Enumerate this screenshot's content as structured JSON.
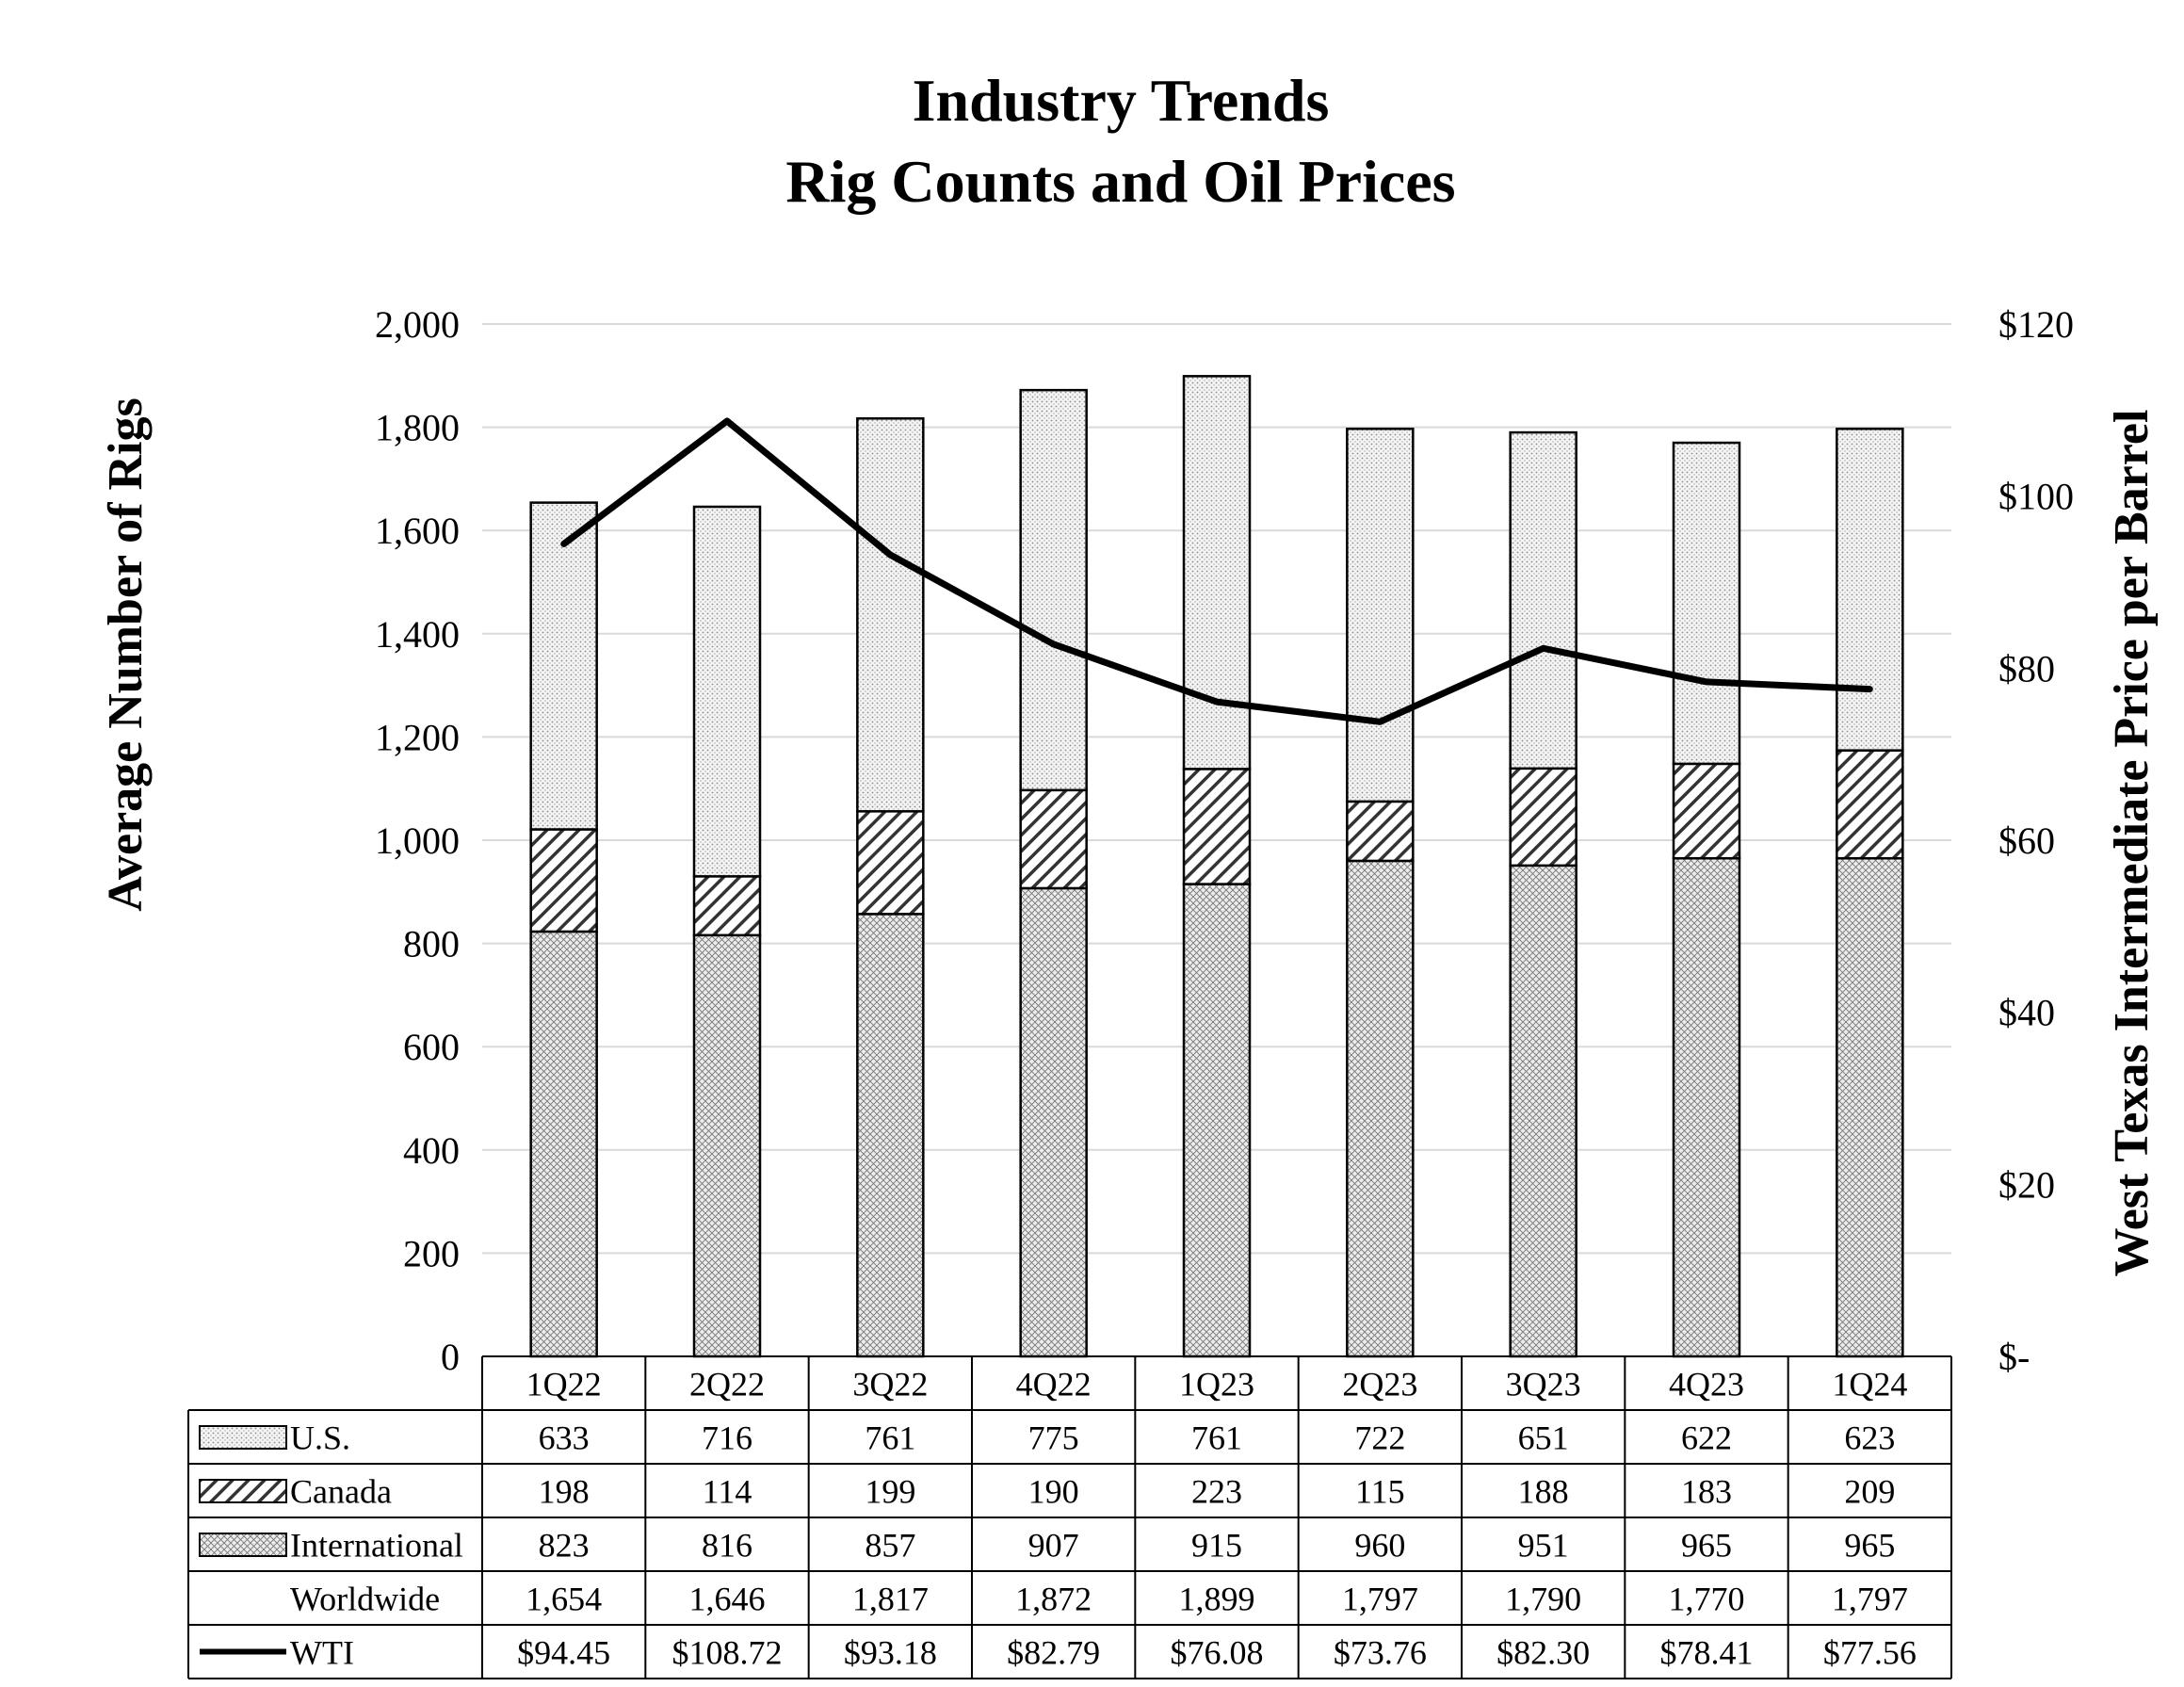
{
  "chart_data": {
    "type": "bar",
    "stacked": true,
    "title": [
      "Industry Trends",
      "Rig Counts and Oil Prices"
    ],
    "ylabel": "Average Number of Rigs",
    "y2label": "West Texas Intermediate Price per Barrel",
    "ylim": [
      0,
      2000
    ],
    "yticks": [
      "0",
      "200",
      "400",
      "600",
      "800",
      "1,000",
      "1,200",
      "1,400",
      "1,600",
      "1,800",
      "2,000"
    ],
    "y2lim": [
      0,
      120
    ],
    "y2ticks": [
      "$-",
      "$20",
      "$40",
      "$60",
      "$80",
      "$100",
      "$120"
    ],
    "grid": true,
    "categories": [
      "1Q22",
      "2Q22",
      "3Q22",
      "4Q22",
      "1Q23",
      "2Q23",
      "3Q23",
      "4Q23",
      "1Q24"
    ],
    "series": [
      {
        "name": "U.S.",
        "kind": "bar",
        "pattern": "dots",
        "values": [
          633,
          716,
          761,
          775,
          761,
          722,
          651,
          622,
          623
        ],
        "labels": [
          "633",
          "716",
          "761",
          "775",
          "761",
          "722",
          "651",
          "622",
          "623"
        ]
      },
      {
        "name": "Canada",
        "kind": "bar",
        "pattern": "diagonal",
        "values": [
          198,
          114,
          199,
          190,
          223,
          115,
          188,
          183,
          209
        ],
        "labels": [
          "198",
          "114",
          "199",
          "190",
          "223",
          "115",
          "188",
          "183",
          "209"
        ]
      },
      {
        "name": "International",
        "kind": "bar",
        "pattern": "crosshatch",
        "values": [
          823,
          816,
          857,
          907,
          915,
          960,
          951,
          965,
          965
        ],
        "labels": [
          "823",
          "816",
          "857",
          "907",
          "915",
          "960",
          "951",
          "965",
          "965"
        ]
      },
      {
        "name": "Worldwide",
        "kind": "total",
        "values": [
          1654,
          1646,
          1817,
          1872,
          1899,
          1797,
          1790,
          1770,
          1797
        ],
        "labels": [
          "1,654",
          "1,646",
          "1,817",
          "1,872",
          "1,899",
          "1,797",
          "1,790",
          "1,770",
          "1,797"
        ]
      },
      {
        "name": "WTI",
        "kind": "line",
        "axis": "y2",
        "values": [
          94.45,
          108.72,
          93.18,
          82.79,
          76.08,
          73.76,
          82.3,
          78.41,
          77.56
        ],
        "labels": [
          "$94.45",
          "$108.72",
          "$93.18",
          "$82.79",
          "$76.08",
          "$73.76",
          "$82.30",
          "$78.41",
          "$77.56"
        ]
      }
    ],
    "colors": {
      "grid": "#d9d9d9",
      "border": "#000000",
      "line": "#000000",
      "fill_light": "#f2f2f2",
      "fill_dark": "#555555"
    }
  }
}
